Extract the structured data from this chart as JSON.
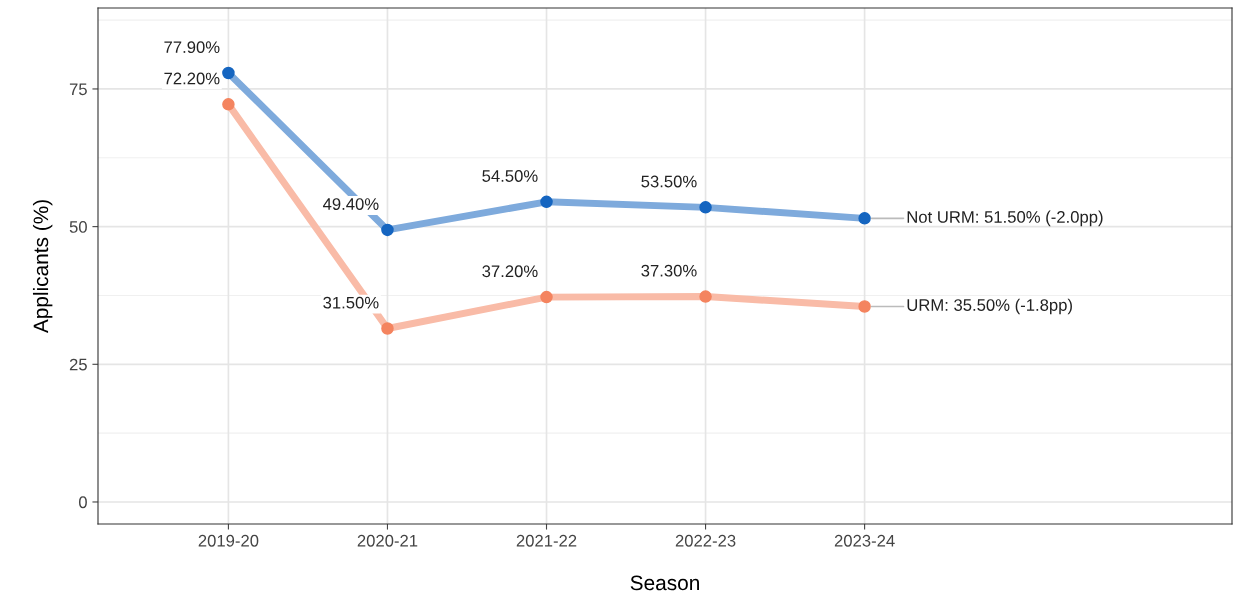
{
  "chart_data": {
    "type": "line",
    "xlabel": "Season",
    "ylabel": "Applicants (%)",
    "categories": [
      "2019-20",
      "2020-21",
      "2021-22",
      "2022-23",
      "2023-24"
    ],
    "series": [
      {
        "color": "#1565c0",
        "values": [
          77.9,
          49.4,
          54.5,
          53.5,
          51.5
        ],
        "value_labels": [
          "77.90%",
          "49.40%",
          "54.50%",
          "53.50%",
          null
        ]
      },
      {
        "color": "#f4845f",
        "values": [
          72.2,
          31.5,
          37.2,
          37.3,
          35.5
        ],
        "value_labels": [
          "72.20%",
          "31.50%",
          "37.20%",
          "37.30%",
          null
        ]
      }
    ],
    "annotations": [
      {
        "text": "Not URM: 51.50% (-2.0pp)",
        "x": "2023-24",
        "y": 51.5
      },
      {
        "text": "URM: 35.50% (-1.8pp)",
        "x": "2023-24",
        "y": 35.5
      }
    ],
    "ylim": [
      -4,
      89.7
    ],
    "yticks": [
      0,
      25,
      50,
      75
    ],
    "grid": true,
    "marker": "circle",
    "line_style": "solid"
  }
}
